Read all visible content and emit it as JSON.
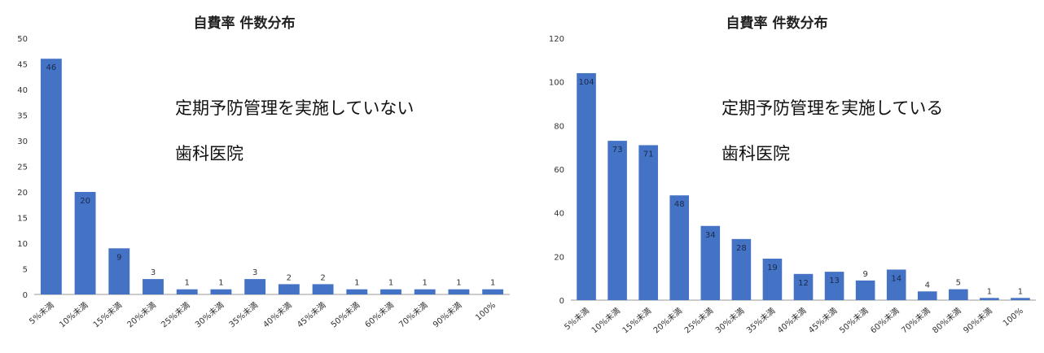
{
  "chart_data": [
    {
      "type": "bar",
      "title": "自費率 件数分布",
      "annotation": [
        "定期予防管理を実施していない",
        "歯科医院"
      ],
      "categories": [
        "5%未満",
        "10%未満",
        "15%未満",
        "20%未満",
        "25%未満",
        "30%未満",
        "35%未満",
        "40%未満",
        "45%未満",
        "50%未満",
        "60%未満",
        "70%未満",
        "90%未満",
        "100%"
      ],
      "values": [
        46,
        20,
        9,
        3,
        1,
        1,
        3,
        2,
        2,
        1,
        1,
        1,
        1,
        1
      ],
      "ylim": [
        0,
        50
      ],
      "yticks": [
        0,
        5,
        10,
        15,
        20,
        25,
        30,
        35,
        40,
        45,
        50
      ],
      "xlabel": "",
      "ylabel": "",
      "color": "#4472C4",
      "grid": false
    },
    {
      "type": "bar",
      "title": "自費率 件数分布",
      "annotation": [
        "定期予防管理を実施している",
        "歯科医院"
      ],
      "categories": [
        "5%未満",
        "10%未満",
        "15%未満",
        "20%未満",
        "25%未満",
        "30%未満",
        "35%未満",
        "40%未満",
        "45%未満",
        "50%未満",
        "60%未満",
        "70%未満",
        "80%未満",
        "90%未満",
        "100%"
      ],
      "values": [
        104,
        73,
        71,
        48,
        34,
        28,
        19,
        12,
        13,
        9,
        14,
        4,
        5,
        1,
        1
      ],
      "ylim": [
        0,
        120
      ],
      "yticks": [
        0,
        20,
        40,
        60,
        80,
        100,
        120
      ],
      "xlabel": "",
      "ylabel": "",
      "color": "#4472C4",
      "grid": false
    }
  ]
}
